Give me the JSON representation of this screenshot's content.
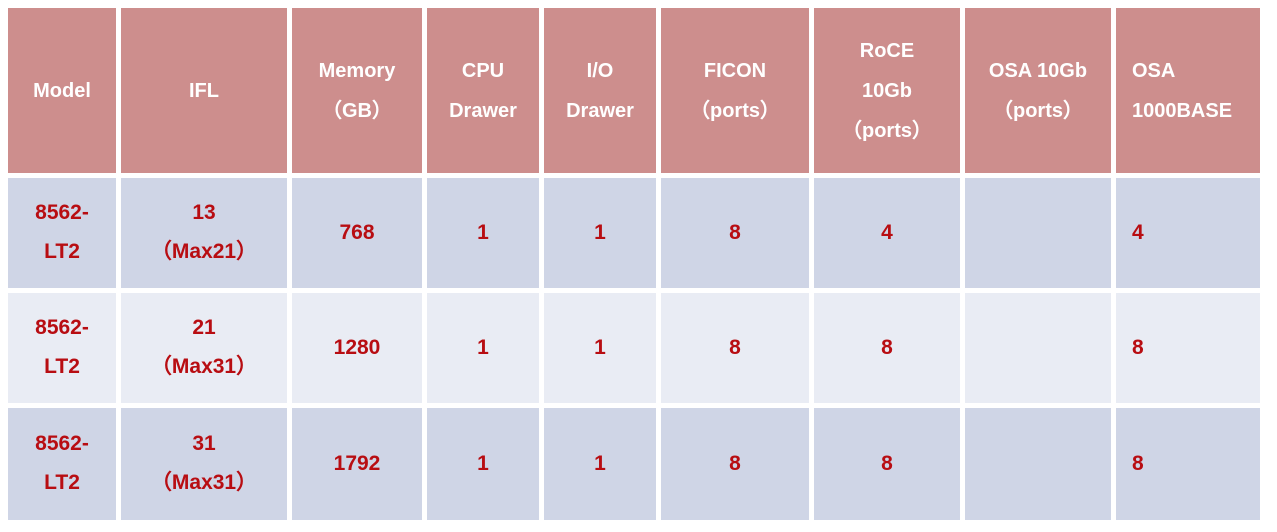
{
  "colors": {
    "header_bg": "#cd8e8d",
    "row_odd_bg": "#cfd5e6",
    "row_even_bg": "#e9ecf4",
    "header_text": "#ffffff",
    "data_text": "#b80d12",
    "grid": "#ffffff"
  },
  "chart_data": {
    "type": "table",
    "columns": [
      {
        "id": "model",
        "align": "center",
        "lines": [
          "Model"
        ]
      },
      {
        "id": "ifl",
        "align": "center",
        "lines": [
          "IFL"
        ]
      },
      {
        "id": "memory-gb",
        "align": "center",
        "lines": [
          "Memory",
          "（GB）"
        ]
      },
      {
        "id": "cpu-drawer",
        "align": "center",
        "lines": [
          "CPU",
          "Drawer"
        ]
      },
      {
        "id": "io-drawer",
        "align": "center",
        "lines": [
          "I/O",
          "Drawer"
        ]
      },
      {
        "id": "ficon-ports",
        "align": "center",
        "lines": [
          "FICON",
          "（ports）"
        ]
      },
      {
        "id": "roce-10gb-ports",
        "align": "center",
        "lines": [
          "RoCE",
          "10Gb",
          "（ports）"
        ]
      },
      {
        "id": "osa-10gb-ports",
        "align": "center",
        "lines": [
          "OSA 10Gb",
          "（ports）"
        ]
      },
      {
        "id": "osa-1000base",
        "align": "left",
        "lines": [
          "OSA",
          "1000BASE"
        ]
      }
    ],
    "rows": [
      {
        "cells": [
          [
            "8562-",
            "LT2"
          ],
          [
            "13",
            "（Max21）"
          ],
          [
            "768"
          ],
          [
            "1"
          ],
          [
            "1"
          ],
          [
            "8"
          ],
          [
            "4"
          ],
          [],
          [
            "4"
          ]
        ]
      },
      {
        "cells": [
          [
            "8562-",
            "LT2"
          ],
          [
            "21",
            "（Max31）"
          ],
          [
            "1280"
          ],
          [
            "1"
          ],
          [
            "1"
          ],
          [
            "8"
          ],
          [
            "8"
          ],
          [],
          [
            "8"
          ]
        ]
      },
      {
        "cells": [
          [
            "8562-",
            "LT2"
          ],
          [
            "31",
            "（Max31）"
          ],
          [
            "1792"
          ],
          [
            "1"
          ],
          [
            "1"
          ],
          [
            "8"
          ],
          [
            "8"
          ],
          [],
          [
            "8"
          ]
        ]
      }
    ]
  }
}
